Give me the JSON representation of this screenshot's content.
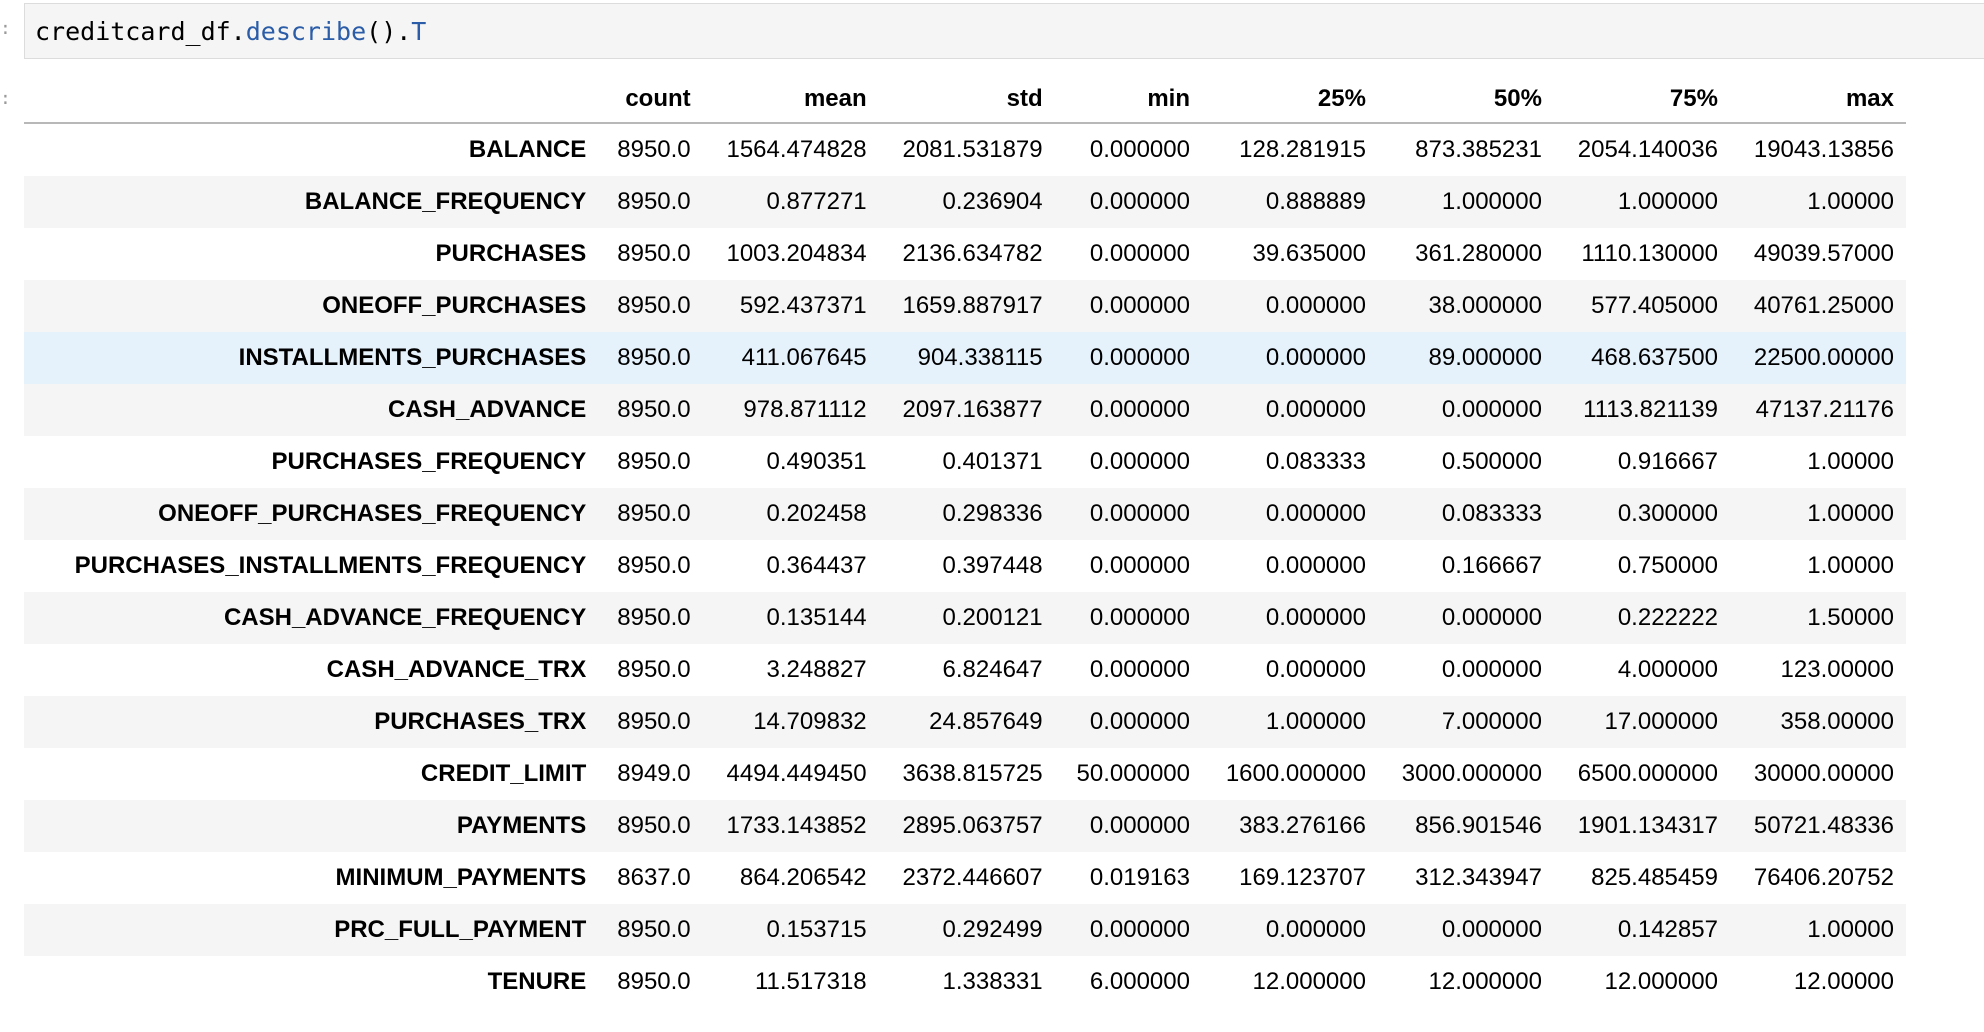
{
  "code_cell": {
    "prefix": "creditcard_df.",
    "method": "describe",
    "parens": "().",
    "attr": "T"
  },
  "prompt_marker": ":",
  "table": {
    "columns": [
      "count",
      "mean",
      "std",
      "min",
      "25%",
      "50%",
      "75%",
      "max"
    ],
    "highlighted_row": 4,
    "rows": [
      {
        "label": "BALANCE",
        "values": [
          "8950.0",
          "1564.474828",
          "2081.531879",
          "0.000000",
          "128.281915",
          "873.385231",
          "2054.140036",
          "19043.13856"
        ]
      },
      {
        "label": "BALANCE_FREQUENCY",
        "values": [
          "8950.0",
          "0.877271",
          "0.236904",
          "0.000000",
          "0.888889",
          "1.000000",
          "1.000000",
          "1.00000"
        ]
      },
      {
        "label": "PURCHASES",
        "values": [
          "8950.0",
          "1003.204834",
          "2136.634782",
          "0.000000",
          "39.635000",
          "361.280000",
          "1110.130000",
          "49039.57000"
        ]
      },
      {
        "label": "ONEOFF_PURCHASES",
        "values": [
          "8950.0",
          "592.437371",
          "1659.887917",
          "0.000000",
          "0.000000",
          "38.000000",
          "577.405000",
          "40761.25000"
        ]
      },
      {
        "label": "INSTALLMENTS_PURCHASES",
        "values": [
          "8950.0",
          "411.067645",
          "904.338115",
          "0.000000",
          "0.000000",
          "89.000000",
          "468.637500",
          "22500.00000"
        ]
      },
      {
        "label": "CASH_ADVANCE",
        "values": [
          "8950.0",
          "978.871112",
          "2097.163877",
          "0.000000",
          "0.000000",
          "0.000000",
          "1113.821139",
          "47137.21176"
        ]
      },
      {
        "label": "PURCHASES_FREQUENCY",
        "values": [
          "8950.0",
          "0.490351",
          "0.401371",
          "0.000000",
          "0.083333",
          "0.500000",
          "0.916667",
          "1.00000"
        ]
      },
      {
        "label": "ONEOFF_PURCHASES_FREQUENCY",
        "values": [
          "8950.0",
          "0.202458",
          "0.298336",
          "0.000000",
          "0.000000",
          "0.083333",
          "0.300000",
          "1.00000"
        ]
      },
      {
        "label": "PURCHASES_INSTALLMENTS_FREQUENCY",
        "values": [
          "8950.0",
          "0.364437",
          "0.397448",
          "0.000000",
          "0.000000",
          "0.166667",
          "0.750000",
          "1.00000"
        ]
      },
      {
        "label": "CASH_ADVANCE_FREQUENCY",
        "values": [
          "8950.0",
          "0.135144",
          "0.200121",
          "0.000000",
          "0.000000",
          "0.000000",
          "0.222222",
          "1.50000"
        ]
      },
      {
        "label": "CASH_ADVANCE_TRX",
        "values": [
          "8950.0",
          "3.248827",
          "6.824647",
          "0.000000",
          "0.000000",
          "0.000000",
          "4.000000",
          "123.00000"
        ]
      },
      {
        "label": "PURCHASES_TRX",
        "values": [
          "8950.0",
          "14.709832",
          "24.857649",
          "0.000000",
          "1.000000",
          "7.000000",
          "17.000000",
          "358.00000"
        ]
      },
      {
        "label": "CREDIT_LIMIT",
        "values": [
          "8949.0",
          "4494.449450",
          "3638.815725",
          "50.000000",
          "1600.000000",
          "3000.000000",
          "6500.000000",
          "30000.00000"
        ]
      },
      {
        "label": "PAYMENTS",
        "values": [
          "8950.0",
          "1733.143852",
          "2895.063757",
          "0.000000",
          "383.276166",
          "856.901546",
          "1901.134317",
          "50721.48336"
        ]
      },
      {
        "label": "MINIMUM_PAYMENTS",
        "values": [
          "8637.0",
          "864.206542",
          "2372.446607",
          "0.019163",
          "169.123707",
          "312.343947",
          "825.485459",
          "76406.20752"
        ]
      },
      {
        "label": "PRC_FULL_PAYMENT",
        "values": [
          "8950.0",
          "0.153715",
          "0.292499",
          "0.000000",
          "0.000000",
          "0.000000",
          "0.142857",
          "1.00000"
        ]
      },
      {
        "label": "TENURE",
        "values": [
          "8950.0",
          "11.517318",
          "1.338331",
          "6.000000",
          "12.000000",
          "12.000000",
          "12.000000",
          "12.00000"
        ]
      }
    ]
  }
}
